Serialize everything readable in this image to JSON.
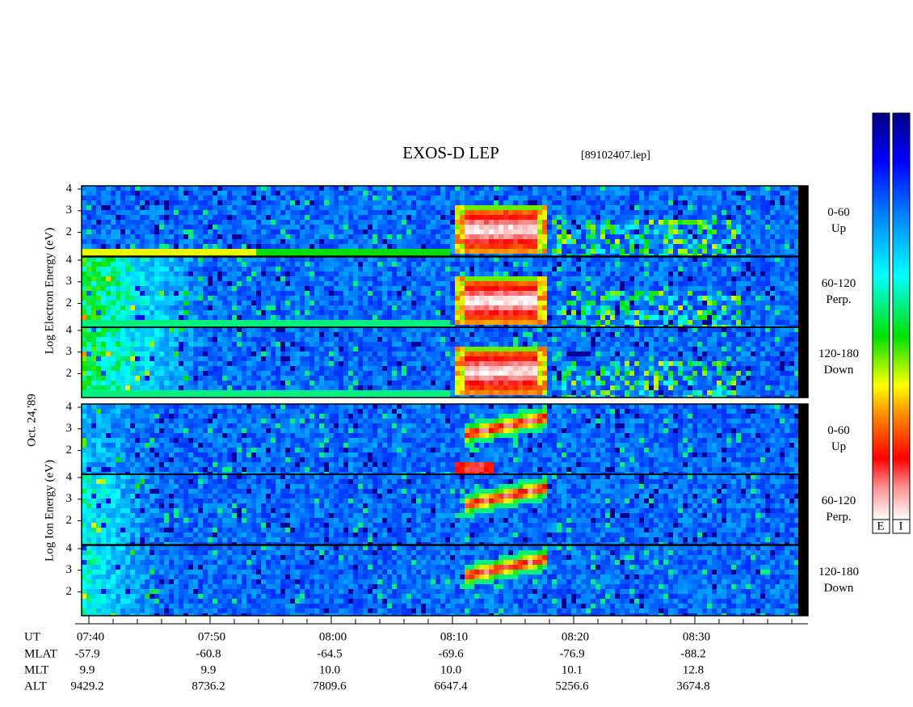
{
  "title": "EXOS-D LEP",
  "file": "[89102407.lep]",
  "date": "Oct. 24,'89",
  "electron_axis_label": "Log Electron Energy (eV)",
  "ion_axis_label": "Log Ion Energy (eV)",
  "energy_range": [
    0.9,
    4.15
  ],
  "energy_ticks": [
    2,
    3,
    4
  ],
  "time_range": [
    "07:39:24",
    "08:39:20"
  ],
  "panels": [
    {
      "group": "electron",
      "pitch": "0-60",
      "direction": "Up"
    },
    {
      "group": "electron",
      "pitch": "60-120",
      "direction": "Perp."
    },
    {
      "group": "electron",
      "pitch": "120-180",
      "direction": "Down"
    },
    {
      "group": "ion",
      "pitch": "0-60",
      "direction": "Up"
    },
    {
      "group": "ion",
      "pitch": "60-120",
      "direction": "Perp."
    },
    {
      "group": "ion",
      "pitch": "120-180",
      "direction": "Down"
    }
  ],
  "ephemeris": {
    "labels": [
      "UT",
      "MLAT",
      "MLT",
      "ALT"
    ],
    "ut": [
      "07:40",
      "07:50",
      "08:00",
      "08:10",
      "08:20",
      "08:30"
    ],
    "mlat": [
      "-57.9",
      "-60.8",
      "-64.5",
      "-69.6",
      "-76.9",
      "-88.2"
    ],
    "mlt": [
      "9.9",
      "9.9",
      "10.0",
      "10.0",
      "10.1",
      "12.8"
    ],
    "alt": [
      "9429.2",
      "8736.2",
      "7809.6",
      "6647.4",
      "5256.6",
      "3674.8"
    ]
  },
  "colorbar_labels": [
    "E",
    "I"
  ]
}
